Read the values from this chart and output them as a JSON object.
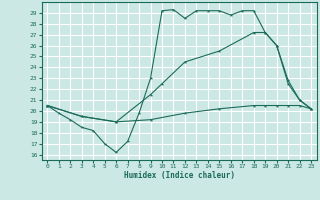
{
  "title": "",
  "xlabel": "Humidex (Indice chaleur)",
  "ylabel": "",
  "bg_color": "#cce8e4",
  "grid_color": "#ffffff",
  "line_color": "#1a6b5a",
  "xlim": [
    -0.5,
    23.5
  ],
  "ylim": [
    15.5,
    30.0
  ],
  "yticks": [
    16,
    17,
    18,
    19,
    20,
    21,
    22,
    23,
    24,
    25,
    26,
    27,
    28,
    29
  ],
  "xticks": [
    0,
    1,
    2,
    3,
    4,
    5,
    6,
    7,
    8,
    9,
    10,
    11,
    12,
    13,
    14,
    15,
    16,
    17,
    18,
    19,
    20,
    21,
    22,
    23
  ],
  "series1_x": [
    0,
    1,
    2,
    3,
    4,
    5,
    6,
    7,
    8,
    9,
    10,
    11,
    12,
    13,
    14,
    15,
    16,
    17,
    18,
    19,
    20,
    21,
    22,
    23
  ],
  "series1_y": [
    20.5,
    19.8,
    19.2,
    18.5,
    18.2,
    17.0,
    16.2,
    17.2,
    19.8,
    23.0,
    29.2,
    29.3,
    28.5,
    29.2,
    29.2,
    29.2,
    28.8,
    29.2,
    29.2,
    27.2,
    26.0,
    22.8,
    21.0,
    20.2
  ],
  "series2_x": [
    0,
    3,
    6,
    9,
    10,
    12,
    15,
    18,
    19,
    20,
    21,
    22,
    23
  ],
  "series2_y": [
    20.5,
    19.5,
    19.0,
    21.5,
    22.5,
    24.5,
    25.5,
    27.2,
    27.2,
    26.0,
    22.5,
    21.0,
    20.2
  ],
  "series3_x": [
    0,
    3,
    6,
    9,
    12,
    15,
    18,
    19,
    20,
    21,
    22,
    23
  ],
  "series3_y": [
    20.5,
    19.5,
    19.0,
    19.2,
    19.8,
    20.2,
    20.5,
    20.5,
    20.5,
    20.5,
    20.5,
    20.2
  ]
}
